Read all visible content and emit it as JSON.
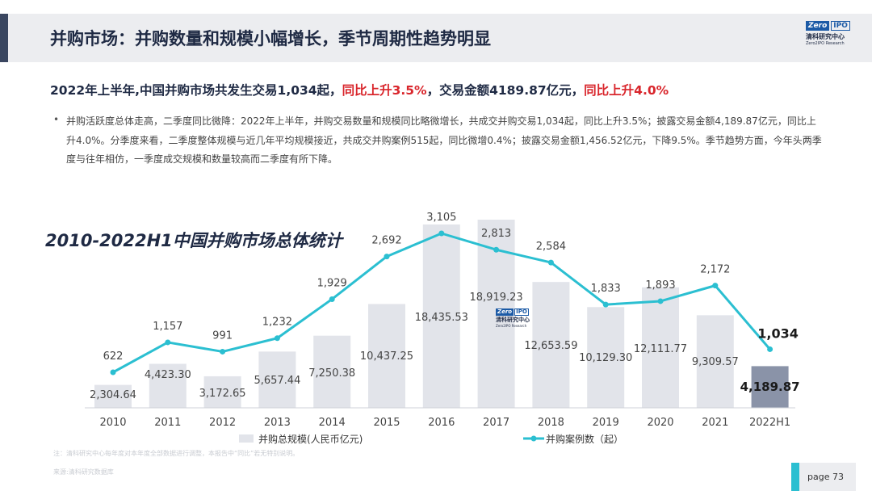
{
  "header": {
    "title": "并购市场：并购数量和规模小幅增长，季节周期性趋势明显",
    "logo": {
      "zero": "Zero",
      "ipo": "IPO",
      "cn": "清科研究中心",
      "en": "Zero2IPO Research"
    }
  },
  "summary": {
    "part1": "2022年上半年,中国并购市场共发生交易1,034起，",
    "part2": "同比上升3.5%",
    "part3": "，交易金额4189.87亿元，",
    "part4": "同比上升4.0%"
  },
  "paragraph": "并购活跃度总体走高，二季度同比微降：2022年上半年，并购交易数量和规模同比略微增长，共成交并购交易1,034起，同比上升3.5%；披露交易金额4,189.87亿元，同比上升4.0%。分季度来看，二季度整体规模与近几年平均规模接近，共成交并购案例515起，同比微增0.4%；披露交易金额1,456.52亿元，下降9.5%。季节趋势方面，今年头两季度与往年相仿，一季度成交规模和数量较高而二季度有所下降。",
  "chart_data": {
    "type": "bar+line",
    "title": "2010-2022H1中国并购市场总体统计",
    "categories": [
      "2010",
      "2011",
      "2012",
      "2013",
      "2014",
      "2015",
      "2016",
      "2017",
      "2018",
      "2019",
      "2020",
      "2021",
      "2022H1"
    ],
    "series": [
      {
        "name": "并购总规模(人民币亿元)",
        "type": "bar",
        "values": [
          2304.64,
          4423.3,
          3172.65,
          5657.44,
          7250.38,
          10437.25,
          18435.53,
          18919.23,
          12653.59,
          10129.3,
          12111.77,
          9309.57,
          4189.87
        ],
        "labels": [
          "2,304.64",
          "4,423.30",
          "3,172.65",
          "5,657.44",
          "7,250.38",
          "10,437.25",
          "18,435.53",
          "18,919.23",
          "12,653.59",
          "10,129.30",
          "12,111.77",
          "9,309.57",
          "4,189.87"
        ]
      },
      {
        "name": "并购案例数（起）",
        "type": "line",
        "values": [
          622,
          1157,
          991,
          1232,
          1929,
          2692,
          3105,
          2813,
          2584,
          1833,
          1893,
          2172,
          1034
        ],
        "labels": [
          "622",
          "1,157",
          "991",
          "1,232",
          "1,929",
          "2,692",
          "3,105",
          "2,813",
          "2,584",
          "1,833",
          "1,893",
          "2,172",
          "1,034"
        ]
      }
    ],
    "colors": {
      "bar": "#e2e4ea",
      "bar_highlight": "#8a93a8",
      "line": "#2bbfd1"
    },
    "legend": "bottom"
  },
  "watermark": {
    "zero": "Zero",
    "ipo": "IPO",
    "cn": "清科研究中心",
    "en": "Zero2IPO Research"
  },
  "footnote": "注：清科研究中心每年度对本年度全部数据进行调整，本报告中“同比”若无特别说明。",
  "source": "来源:清科研究数据库",
  "page": "page  73"
}
